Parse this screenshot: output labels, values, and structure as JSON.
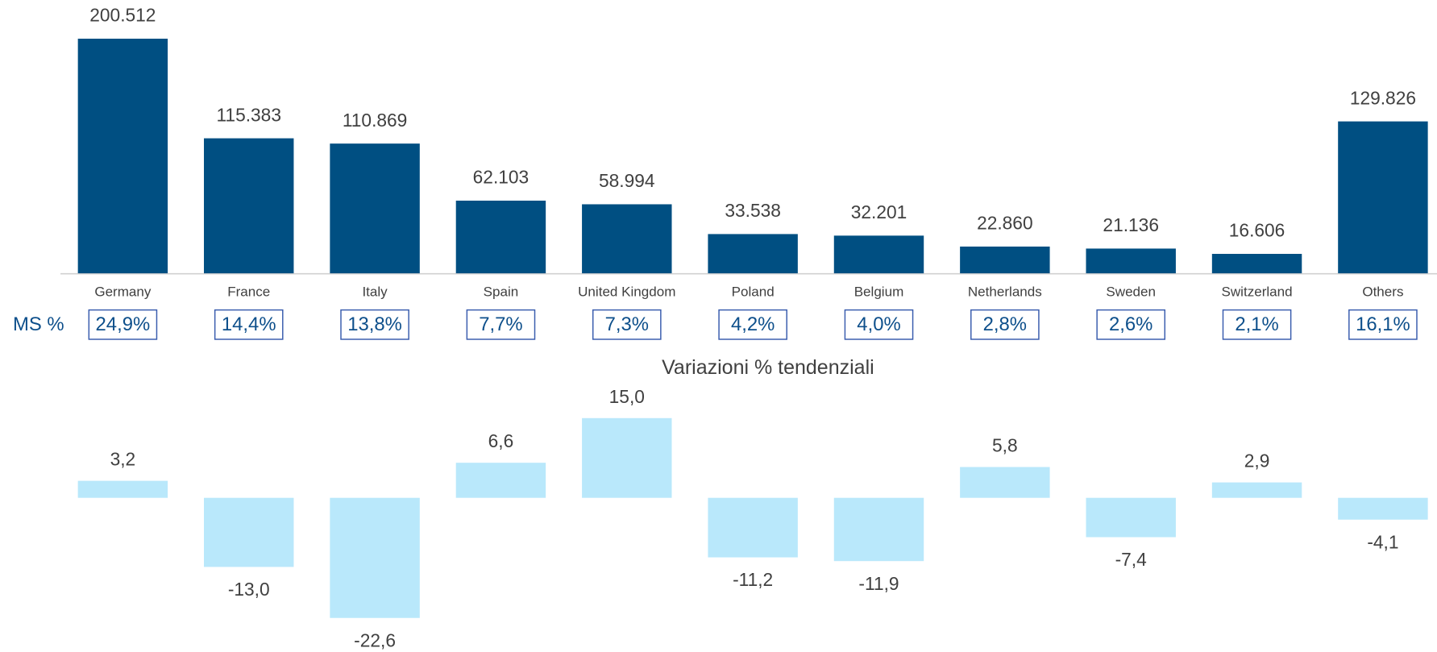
{
  "chart_data": [
    {
      "type": "bar",
      "categories": [
        "Germany",
        "France",
        "Italy",
        "Spain",
        "United Kingdom",
        "Poland",
        "Belgium",
        "Netherlands",
        "Sweden",
        "Switzerland",
        "Others"
      ],
      "values": [
        200512,
        115383,
        110869,
        62103,
        58994,
        33538,
        32201,
        22860,
        21136,
        16606,
        129826
      ],
      "value_labels": [
        "200.512",
        "115.383",
        "110.869",
        "62.103",
        "58.994",
        "33.538",
        "32.201",
        "22.860",
        "21.136",
        "16.606",
        "129.826"
      ],
      "color": "#004f82",
      "shares": {
        "name": "MS %",
        "values": [
          24.9,
          14.4,
          13.8,
          7.7,
          7.3,
          4.2,
          4.0,
          2.8,
          2.6,
          2.1,
          16.1
        ],
        "value_labels": [
          "24,9%",
          "14,4%",
          "13,8%",
          "7,7%",
          "7,3%",
          "4,2%",
          "4,0%",
          "2,8%",
          "2,6%",
          "2,1%",
          "16,1%"
        ]
      }
    },
    {
      "type": "bar",
      "title": "Variazioni % tendenziali",
      "values": [
        3.2,
        -13.0,
        -22.6,
        6.6,
        15.0,
        -11.2,
        -11.9,
        5.8,
        -7.4,
        2.9,
        -4.1
      ],
      "value_labels": [
        "3,2",
        "-13,0",
        "-22,6",
        "6,6",
        "15,0",
        "-11,2",
        "-11,9",
        "5,8",
        "-7,4",
        "2,9",
        "-4,1"
      ],
      "color": "#b9e8fb"
    }
  ]
}
